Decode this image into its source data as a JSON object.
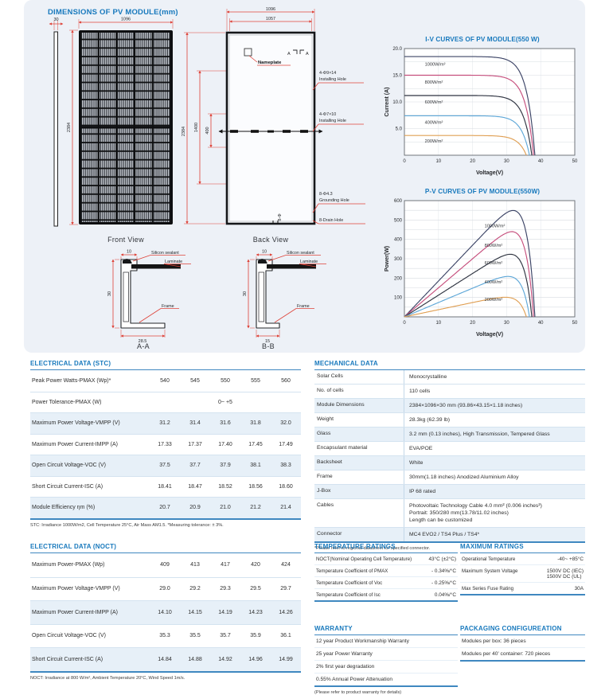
{
  "dimensions_panel": {
    "title": "DIMENSIONS OF PV MODULE(mm)",
    "front_view": {
      "caption": "Front View",
      "dim_30": "30",
      "dim_1096": "1096",
      "dim_2384": "2384"
    },
    "back_view": {
      "caption": "Back View",
      "dim_1096": "1096",
      "dim_1057": "1057",
      "dim_2384": "2384",
      "dim_1400": "1400",
      "dim_400": "400",
      "dim_8phi": "8-Φ",
      "nameplate_label": "Nameplate",
      "section_mark_left": "A",
      "section_mark_right": "A",
      "hole1_line1": "4-Φ9×14",
      "hole1_line2": "Installing Hole",
      "hole2_line1": "4-Φ7×10",
      "hole2_line2": "Installing Hole",
      "hole3_line1": "8-Φ4.3",
      "hole3_line2": "Grounding Hole",
      "hole4": "8-Drain Hole"
    },
    "section_aa": {
      "caption": "A-A",
      "dim_top": "10",
      "dim_left": "30",
      "dim_bottom": "28.5",
      "sealant": "Silicon sealant",
      "laminate": "Laminate",
      "frame": "Frame"
    },
    "section_bb": {
      "caption": "B-B",
      "dim_top": "10",
      "dim_left": "30",
      "dim_bottom": "15",
      "sealant": "Silicon sealant",
      "laminate": "Laminate",
      "frame": "Frame"
    }
  },
  "chart_data": [
    {
      "type": "line",
      "title": "I-V CURVES OF PV MODULE(550 W)",
      "xlabel": "Voltage(V)",
      "ylabel": "Current (A)",
      "xlim": [
        0,
        50
      ],
      "ylim": [
        0,
        20
      ],
      "xticks": [
        0,
        10,
        20,
        30,
        40,
        50
      ],
      "yticks": [
        5,
        10,
        15,
        20
      ],
      "ytick_labels": [
        "5.0",
        "10.0",
        "15.0",
        "20.0"
      ],
      "ygrid_step": 2.5,
      "mode": "iv",
      "knee": 2.4,
      "grid": true,
      "series": [
        {
          "name": "1000W/m²",
          "color": "#3c4466",
          "isc": 18.5,
          "voc": 38.3,
          "label_x": 6,
          "label_y": 16.8
        },
        {
          "name": "800W/m²",
          "color": "#c64f7d",
          "isc": 15.0,
          "voc": 37.9,
          "label_x": 6,
          "label_y": 13.4
        },
        {
          "name": "600W/m²",
          "color": "#2e3340",
          "isc": 11.2,
          "voc": 37.4,
          "label_x": 6,
          "label_y": 9.7
        },
        {
          "name": "400W/m²",
          "color": "#5fa8d8",
          "isc": 7.4,
          "voc": 36.7,
          "label_x": 6,
          "label_y": 5.9
        },
        {
          "name": "200W/m²",
          "color": "#e0a055",
          "isc": 3.7,
          "voc": 35.8,
          "label_x": 6,
          "label_y": 2.4
        }
      ]
    },
    {
      "type": "line",
      "title": "P-V CURVES OF PV MODULE(550W)",
      "xlabel": "Voltage(V)",
      "ylabel": "Power(W)",
      "xlim": [
        0,
        50
      ],
      "ylim": [
        0,
        600
      ],
      "xticks": [
        0,
        10,
        20,
        30,
        40,
        50
      ],
      "yticks": [
        100,
        200,
        300,
        400,
        500,
        600
      ],
      "ytick_labels": [
        "100",
        "200",
        "300",
        "400",
        "500",
        "600"
      ],
      "ygrid_step": 50,
      "mode": "pv",
      "knee": 2.4,
      "grid": true,
      "peak_powers": [
        550,
        440,
        335,
        220,
        120
      ],
      "series": [
        {
          "name": "1000W/m²",
          "color": "#3c4466",
          "isc": 18.5,
          "voc": 38.3,
          "label_x": 23.5,
          "label_y": 462
        },
        {
          "name": "800W/m²",
          "color": "#c64f7d",
          "isc": 15.0,
          "voc": 37.9,
          "label_x": 23.5,
          "label_y": 362
        },
        {
          "name": "600W/m²",
          "color": "#2e3340",
          "isc": 11.2,
          "voc": 37.4,
          "label_x": 23.5,
          "label_y": 272
        },
        {
          "name": "400W/m²",
          "color": "#5fa8d8",
          "isc": 7.4,
          "voc": 36.7,
          "label_x": 23.5,
          "label_y": 172
        },
        {
          "name": "200W/m²",
          "color": "#e0a055",
          "isc": 3.7,
          "voc": 35.8,
          "label_x": 23.5,
          "label_y": 82
        }
      ]
    }
  ],
  "electrical_stc": {
    "title": "ELECTRICAL DATA (STC)",
    "rows": [
      {
        "label": "Peak Power Watts-PMAX (Wp)*",
        "values": [
          "540",
          "545",
          "550",
          "555",
          "560"
        ],
        "shaded": false
      },
      {
        "label": "Power Tolerance-PMAX (W)",
        "values": [
          "",
          "",
          "0~ +5",
          "",
          ""
        ],
        "shaded": false
      },
      {
        "label": "Maximum Power Voltage-VMPP (V)",
        "values": [
          "31.2",
          "31.4",
          "31.6",
          "31.8",
          "32.0"
        ],
        "shaded": true
      },
      {
        "label": "Maximum Power Current-IMPP (A)",
        "values": [
          "17.33",
          "17.37",
          "17.40",
          "17.45",
          "17.49"
        ],
        "shaded": false
      },
      {
        "label": "Open Circuit Voltage-VOC (V)",
        "values": [
          "37.5",
          "37.7",
          "37.9",
          "38.1",
          "38.3"
        ],
        "shaded": true
      },
      {
        "label": "Short Circuit Current-ISC (A)",
        "values": [
          "18.41",
          "18.47",
          "18.52",
          "18.56",
          "18.60"
        ],
        "shaded": false
      },
      {
        "label": "Module Efficiency ηm (%)",
        "values": [
          "20.7",
          "20.9",
          "21.0",
          "21.2",
          "21.4"
        ],
        "shaded": true
      }
    ],
    "footnote": "STC: Irradiance 1000W/m2, Cell Temperature 25°C, Air Mass AM1.5.   *Measuring tolerance: ± 3%."
  },
  "electrical_noct": {
    "title": "ELECTRICAL DATA (NOCT)",
    "rows": [
      {
        "label": "Maximum Power-PMAX (Wp)",
        "values": [
          "409",
          "413",
          "417",
          "420",
          "424"
        ],
        "shaded": false
      },
      {
        "label": "Maximum Power Voltage-VMPP (V)",
        "values": [
          "29.0",
          "29.2",
          "29.3",
          "29.5",
          "29.7"
        ],
        "shaded": false
      },
      {
        "label": "Maximum Power Current-IMPP (A)",
        "values": [
          "14.10",
          "14.15",
          "14.19",
          "14.23",
          "14.26"
        ],
        "shaded": true
      },
      {
        "label": "Open Circuit Voltage-VOC (V)",
        "values": [
          "35.3",
          "35.5",
          "35.7",
          "35.9",
          "36.1"
        ],
        "shaded": false
      },
      {
        "label": "Short Circuit Current-ISC (A)",
        "values": [
          "14.84",
          "14.88",
          "14.92",
          "14.96",
          "14.99"
        ],
        "shaded": true
      }
    ],
    "footnote": "NOCT: Irradiance at 800 W/m², Ambient Temperature 20°C, Wind Speed 1m/s."
  },
  "mechanical": {
    "title": "MECHANICAL DATA",
    "rows": [
      {
        "label": "Solar Cells",
        "lines": [
          "Monocrystalline"
        ],
        "shaded": false
      },
      {
        "label": "No. of cells",
        "lines": [
          "110 cells"
        ],
        "shaded": false
      },
      {
        "label": "Module Dimensions",
        "lines": [
          "2384×1096×30 mm (93.86×43.15×1.18 inches)"
        ],
        "shaded": true
      },
      {
        "label": "Weight",
        "lines": [
          "28.3kg (62.39 lb)"
        ],
        "shaded": false
      },
      {
        "label": "Glass",
        "lines": [
          "3.2 mm (0.13 inches), High Transmission, Tempered Glass"
        ],
        "shaded": true
      },
      {
        "label": "Encapsulant material",
        "lines": [
          "EVA/POE"
        ],
        "shaded": false
      },
      {
        "label": "Backsheet",
        "lines": [
          "White"
        ],
        "shaded": true
      },
      {
        "label": "Frame",
        "lines": [
          "30mm(1.18 inches) Anodized Aluminium Alloy"
        ],
        "shaded": false
      },
      {
        "label": "J-Box",
        "lines": [
          "IP 68 rated"
        ],
        "shaded": true
      },
      {
        "label": "Cables",
        "lines": [
          "Photovoltaic Technology Cable 4.0 mm² (0.006 inches²)",
          "Portrait: 350/280 mm(13.78/11.02 inches)",
          "Length can be customized"
        ],
        "shaded": false
      },
      {
        "label": "Connector",
        "lines": [
          "MC4 EVO2 / TS4 Plus / TS4*"
        ],
        "shaded": true
      }
    ],
    "footnote": "*Please refer to regional datasheet for specified connector."
  },
  "temperature_ratings": {
    "title": "TEMPERATURE RATINGS",
    "rows": [
      {
        "label": "NOCT(Nominal Operating Cell Temperature)",
        "value": "43°C (±2°C)"
      },
      {
        "label": "Temperature Coefficient of PMAX",
        "value": "- 0.34%/°C"
      },
      {
        "label": "Temperature Coefficient of Voc",
        "value": "- 0.25%/°C"
      },
      {
        "label": "Temperature Coefficient of Isc",
        "value": "0.04%/°C"
      }
    ]
  },
  "maximum_ratings": {
    "title": "MAXIMUM RATINGS",
    "rows": [
      {
        "label": "Operational Temperature",
        "value": "-40~ +85°C"
      },
      {
        "label": "Maximum System Voltage",
        "value": "1500V DC (IEC)\n1500V DC (UL)"
      },
      {
        "label": "Max Series Fuse Rating",
        "value": "30A"
      }
    ]
  },
  "warranty": {
    "title": "WARRANTY",
    "items": [
      "12 year Product Workmanship Warranty",
      "25 year Power Warranty",
      "2% first year degradation",
      "0.55% Annual Power Attenuation"
    ],
    "footnote": "(Please refer to product warranty for details)"
  },
  "packaging": {
    "title": "PACKAGING CONFIGUREATION",
    "items": [
      "Modules per box: 36 pieces",
      "Modules per 40' container: 720 pieces"
    ]
  }
}
